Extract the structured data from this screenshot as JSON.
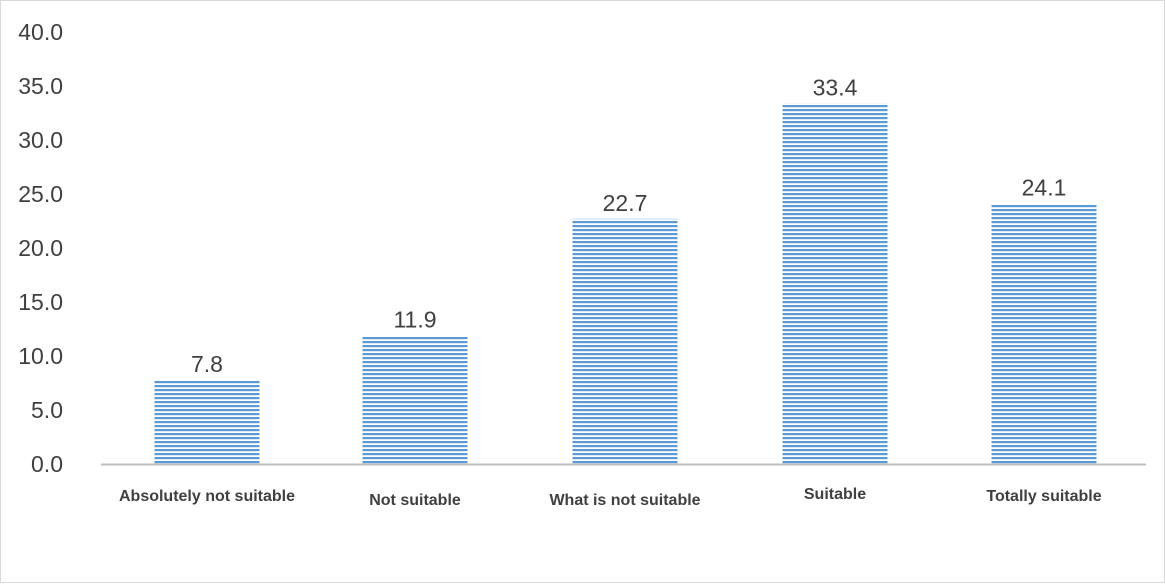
{
  "chart_data": {
    "type": "bar",
    "title": "",
    "xlabel": "",
    "ylabel": "",
    "categories": [
      "Absolutely not suitable",
      "Not suitable",
      "What is not suitable",
      "Suitable",
      "Totally suitable"
    ],
    "values": [
      7.8,
      11.9,
      22.7,
      33.4,
      24.1
    ],
    "data_labels": [
      "7.8",
      "11.9",
      "22.7",
      "33.4",
      "24.1"
    ],
    "ylim": [
      0,
      40
    ],
    "y_ticks": [
      0,
      5,
      10,
      15,
      20,
      25,
      30,
      35,
      40
    ],
    "y_tick_labels": [
      "0.0",
      "5.0",
      "10.0",
      "15.0",
      "20.0",
      "25.0",
      "30.0",
      "35.0",
      "40.0"
    ],
    "grid": false,
    "legend": "none",
    "bar_fill": "horizontal-stripes",
    "colors": {
      "bar_stripe": "#5b9bd5",
      "bar_background": "#ffffff",
      "axis_line": "#bfbfbf",
      "text": "#404040",
      "frame_border": "#d9d9d9"
    }
  }
}
